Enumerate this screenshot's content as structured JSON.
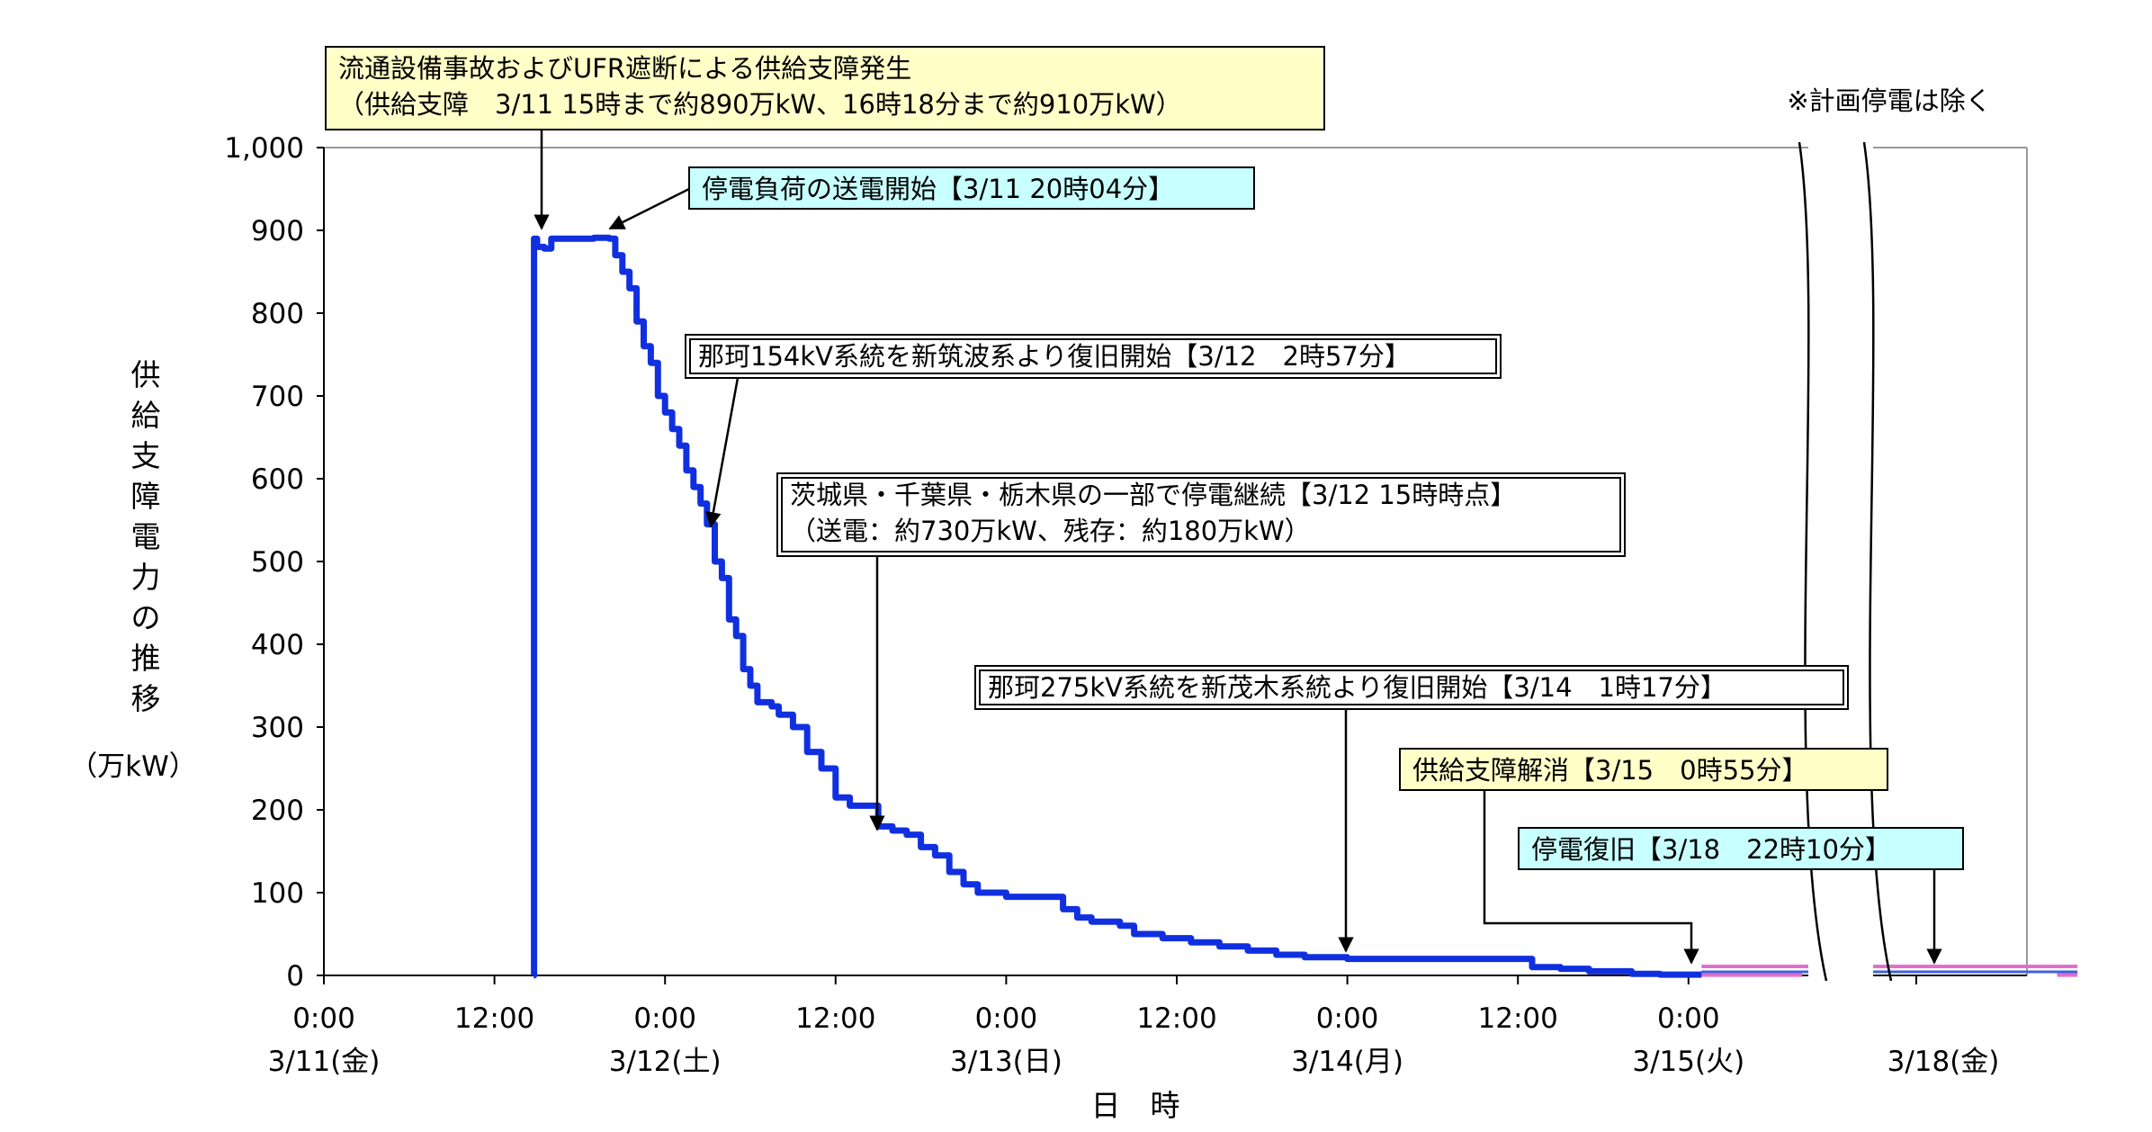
{
  "chart_data": {
    "type": "line",
    "title": "",
    "xlabel": "日　時",
    "ylabel": "供給支障電力の推移",
    "yunit": "（万kW）",
    "ylim": [
      0,
      1000
    ],
    "yticks": [
      "0",
      "100",
      "200",
      "300",
      "400",
      "500",
      "600",
      "700",
      "800",
      "900",
      "1,000"
    ],
    "xticks": [
      {
        "time": "0:00",
        "date": "3/11(金)",
        "color": "#000000"
      },
      {
        "time": "12:00",
        "date": "",
        "color": "#000000"
      },
      {
        "time": "0:00",
        "date": "3/12(土)",
        "color": "#1f3fd8"
      },
      {
        "time": "12:00",
        "date": "",
        "color": "#000000"
      },
      {
        "time": "0:00",
        "date": "3/13(日)",
        "color": "#e02020"
      },
      {
        "time": "12:00",
        "date": "",
        "color": "#000000"
      },
      {
        "time": "0:00",
        "date": "3/14(月)",
        "color": "#000000"
      },
      {
        "time": "12:00",
        "date": "",
        "color": "#000000"
      },
      {
        "time": "0:00",
        "date": "3/15(火)",
        "color": "#000000"
      }
    ],
    "xtick_extra": {
      "date": "3/18(金)"
    },
    "note": "※計画停電は除く",
    "series": [
      {
        "color": "#1030e0",
        "points": [
          [
            "3/11 14:46",
            0
          ],
          [
            "3/11 14:47",
            890
          ],
          [
            "3/11 15:00",
            880
          ],
          [
            "3/11 15:30",
            878
          ],
          [
            "3/11 16:00",
            890
          ],
          [
            "3/11 18:00",
            890
          ],
          [
            "3/11 19:00",
            891
          ],
          [
            "3/11 20:04",
            890
          ],
          [
            "3/11 20:30",
            870
          ],
          [
            "3/11 21:00",
            850
          ],
          [
            "3/11 21:30",
            830
          ],
          [
            "3/11 22:00",
            790
          ],
          [
            "3/11 22:30",
            760
          ],
          [
            "3/11 23:00",
            740
          ],
          [
            "3/11 23:30",
            700
          ],
          [
            "3/12 00:00",
            680
          ],
          [
            "3/12 00:30",
            660
          ],
          [
            "3/12 01:00",
            640
          ],
          [
            "3/12 01:30",
            610
          ],
          [
            "3/12 02:00",
            590
          ],
          [
            "3/12 02:30",
            570
          ],
          [
            "3/12 02:57",
            545
          ],
          [
            "3/12 03:30",
            500
          ],
          [
            "3/12 04:00",
            480
          ],
          [
            "3/12 04:30",
            430
          ],
          [
            "3/12 05:00",
            410
          ],
          [
            "3/12 05:30",
            370
          ],
          [
            "3/12 06:00",
            350
          ],
          [
            "3/12 06:30",
            330
          ],
          [
            "3/12 07:30",
            325
          ],
          [
            "3/12 08:00",
            315
          ],
          [
            "3/12 09:00",
            300
          ],
          [
            "3/12 10:00",
            270
          ],
          [
            "3/12 11:00",
            250
          ],
          [
            "3/12 12:00",
            215
          ],
          [
            "3/12 13:00",
            205
          ],
          [
            "3/12 14:00",
            205
          ],
          [
            "3/12 15:00",
            180
          ],
          [
            "3/12 16:00",
            175
          ],
          [
            "3/12 17:00",
            170
          ],
          [
            "3/12 18:00",
            155
          ],
          [
            "3/12 19:00",
            145
          ],
          [
            "3/12 20:00",
            125
          ],
          [
            "3/12 21:00",
            110
          ],
          [
            "3/12 22:00",
            100
          ],
          [
            "3/13 00:00",
            95
          ],
          [
            "3/13 02:00",
            95
          ],
          [
            "3/13 03:30",
            95
          ],
          [
            "3/13 04:00",
            80
          ],
          [
            "3/13 05:00",
            70
          ],
          [
            "3/13 06:00",
            65
          ],
          [
            "3/13 08:00",
            60
          ],
          [
            "3/13 09:00",
            50
          ],
          [
            "3/13 11:00",
            45
          ],
          [
            "3/13 13:00",
            40
          ],
          [
            "3/13 15:00",
            35
          ],
          [
            "3/13 17:00",
            30
          ],
          [
            "3/13 19:00",
            25
          ],
          [
            "3/13 21:00",
            22
          ],
          [
            "3/14 00:00",
            20
          ],
          [
            "3/14 04:00",
            20
          ],
          [
            "3/14 08:00",
            20
          ],
          [
            "3/14 12:00",
            20
          ],
          [
            "3/14 13:00",
            10
          ],
          [
            "3/14 15:00",
            8
          ],
          [
            "3/14 17:00",
            5
          ],
          [
            "3/14 20:00",
            2
          ],
          [
            "3/14 22:00",
            1
          ],
          [
            "3/15 00:55",
            0
          ]
        ]
      },
      {
        "color": "#e070d0",
        "points": [
          [
            "3/15 00:55",
            1
          ],
          [
            "3/15 08:00",
            1
          ]
        ]
      },
      {
        "color": "#e070d0",
        "points": [
          [
            "3/18 19:00",
            1
          ],
          [
            "3/18 22:10",
            1
          ]
        ]
      }
    ],
    "annotations": [
      {
        "lines": [
          "流通設備事故およびUFR遮断による供給支障発生",
          "（供給支障　3/11 15時まで約890万kW、16時18分まで約910万kW）"
        ],
        "fill": "#ffffc8",
        "border": "single"
      },
      {
        "lines": [
          "停電負荷の送電開始【3/11 20時04分】"
        ],
        "fill": "#c8ffff",
        "border": "single"
      },
      {
        "lines": [
          "那珂154kV系統を新筑波系より復旧開始【3/12　2時57分】"
        ],
        "fill": "#ffffff",
        "border": "double"
      },
      {
        "lines": [
          "茨城県・千葉県・栃木県の一部で停電継続【3/12 15時時点】",
          "（送電：約730万kW、残存：約180万kW）"
        ],
        "fill": "#ffffff",
        "border": "double"
      },
      {
        "lines": [
          "那珂275kV系統を新茂木系統より復旧開始【3/14　1時17分】"
        ],
        "fill": "#ffffff",
        "border": "double"
      },
      {
        "lines": [
          "供給支障解消【3/15　0時55分】"
        ],
        "fill": "#ffffc8",
        "border": "single"
      },
      {
        "lines": [
          "停電復旧【3/18　22時10分】"
        ],
        "fill": "#c8ffff",
        "border": "single"
      }
    ]
  }
}
